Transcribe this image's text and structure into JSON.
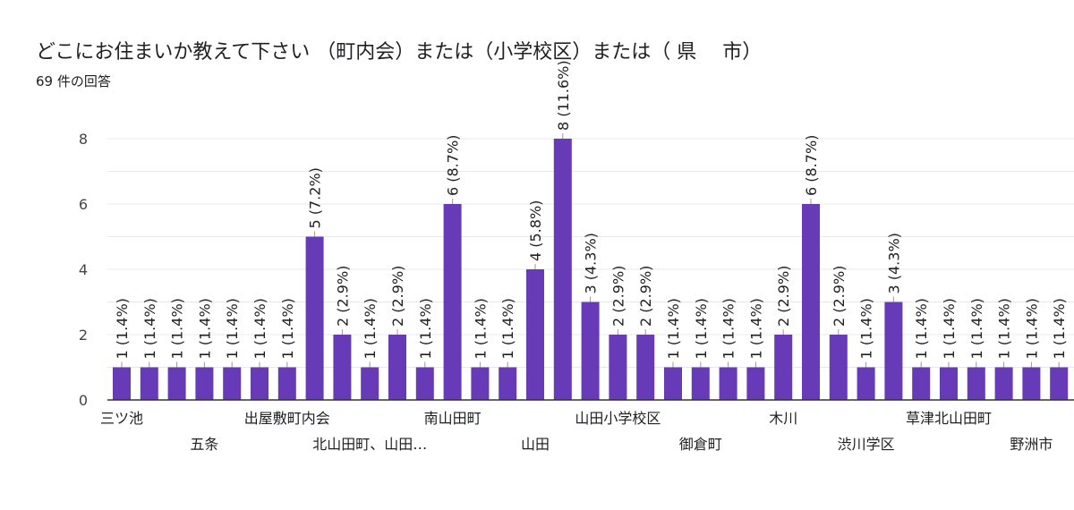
{
  "header": {
    "title": "どこにお住まいか教えて下さい （町内会）または（小学校区）または（ 県　 市）",
    "response_count": "69 件の回答"
  },
  "colors": {
    "bar": "#673ab7",
    "grid": "#e8e8e8",
    "axis": "#333333"
  },
  "chart_data": {
    "type": "bar",
    "title": "どこにお住まいか教えて下さい （町内会）または（小学校区）または（ 県　 市）",
    "xlabel": "",
    "ylabel": "",
    "ylim": [
      0,
      8
    ],
    "yticks": [
      0,
      2,
      4,
      6,
      8
    ],
    "total": 69,
    "categories": [
      "三ツ池",
      "",
      "",
      "五条",
      "",
      "",
      "出屋敷町内会",
      "",
      "",
      "北山田町、山田…",
      "",
      "",
      "南山田町",
      "",
      "",
      "山田",
      "",
      "",
      "山田小学校区",
      "",
      "",
      "御倉町",
      "",
      "",
      "木川",
      "",
      "",
      "渋川学区",
      "",
      "",
      "草津北山田町",
      "",
      "",
      "野洲市",
      ""
    ],
    "values": [
      1,
      1,
      1,
      1,
      1,
      1,
      1,
      5,
      2,
      1,
      2,
      1,
      6,
      1,
      1,
      4,
      8,
      3,
      2,
      2,
      1,
      1,
      1,
      1,
      2,
      6,
      2,
      1,
      3,
      1,
      1,
      1,
      1,
      1,
      1
    ],
    "labels": [
      "1 (1.4%)",
      "1 (1.4%)",
      "1 (1.4%)",
      "1 (1.4%)",
      "1 (1.4%)",
      "1 (1.4%)",
      "1 (1.4%)",
      "5 (7.2%)",
      "2 (2.9%)",
      "1 (1.4%)",
      "2 (2.9%)",
      "1 (1.4%)",
      "6 (8.7%)",
      "1 (1.4%)",
      "1 (1.4%)",
      "4 (5.8%)",
      "8 (11.6%)",
      "3 (4.3%)",
      "2 (2.9%)",
      "2 (2.9%)",
      "1 (1.4%)",
      "1 (1.4%)",
      "1 (1.4%)",
      "1 (1.4%)",
      "2 (2.9%)",
      "6 (8.7%)",
      "2 (2.9%)",
      "1 (1.4%)",
      "3 (4.3%)",
      "1 (1.4%)",
      "1 (1.4%)",
      "1 (1.4%)",
      "1 (1.4%)",
      "1 (1.4%)",
      "1 (1.4%)"
    ]
  }
}
